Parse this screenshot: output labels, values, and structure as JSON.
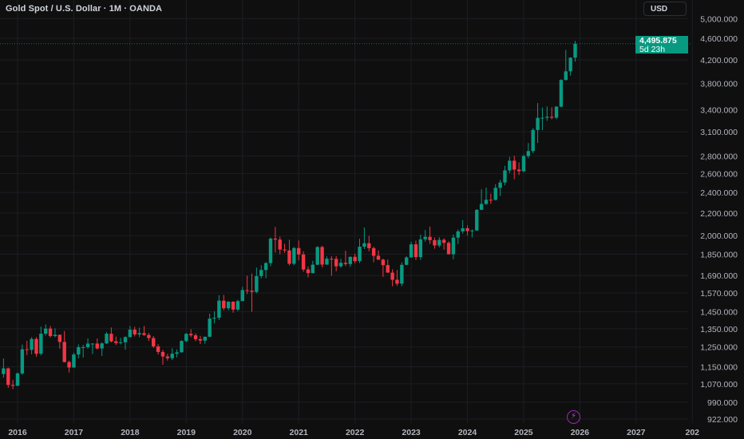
{
  "header": {
    "title": "Gold Spot / U.S. Dollar · 1M · OANDA",
    "currency_button": "USD"
  },
  "last_price": {
    "value": "4,495.875",
    "countdown": "5d 23h"
  },
  "icons": {
    "flash": "lightning-icon"
  },
  "colors": {
    "background": "#0f0f0f",
    "up": "#089981",
    "down": "#f23645",
    "grid": "#1c1e24",
    "text": "#b2b5be",
    "event": "#9c27b0"
  },
  "chart_data": {
    "type": "candlestick",
    "y_scale": "log",
    "ylim": [
      900,
      5100
    ],
    "y_ticks": [
      5000,
      4600,
      4200,
      3800,
      3400,
      3100,
      2800,
      2600,
      2400,
      2200,
      2000,
      1850,
      1690,
      1570,
      1450,
      1350,
      1250,
      1150,
      1070,
      990,
      922
    ],
    "y_tick_labels": [
      "5,000.000",
      "4,600.000",
      "4,200.000",
      "3,800.000",
      "3,400.000",
      "3,100.000",
      "2,800.000",
      "2,600.000",
      "2,400.000",
      "2,200.000",
      "2,000.000",
      "1,850.000",
      "1,690.000",
      "1,570.000",
      "1,450.000",
      "1,350.000",
      "1,250.000",
      "1,150.000",
      "1,070.000",
      "990.000",
      "922.000"
    ],
    "x_ticks": [
      "2016",
      "2017",
      "2018",
      "2019",
      "2020",
      "2021",
      "2022",
      "2023",
      "2024",
      "2025",
      "2026",
      "2027",
      "202"
    ],
    "grid": true,
    "start_month": "2015-10",
    "ohlc": [
      [
        1115,
        1191,
        1098,
        1142
      ],
      [
        1142,
        1146,
        1052,
        1065
      ],
      [
        1065,
        1088,
        1046,
        1061
      ],
      [
        1061,
        1123,
        1061,
        1118
      ],
      [
        1118,
        1263,
        1111,
        1238
      ],
      [
        1238,
        1283,
        1208,
        1235
      ],
      [
        1235,
        1303,
        1212,
        1293
      ],
      [
        1293,
        1303,
        1200,
        1215
      ],
      [
        1215,
        1362,
        1207,
        1322
      ],
      [
        1322,
        1375,
        1311,
        1351
      ],
      [
        1351,
        1366,
        1301,
        1309
      ],
      [
        1309,
        1352,
        1302,
        1316
      ],
      [
        1316,
        1318,
        1241,
        1277
      ],
      [
        1277,
        1337,
        1171,
        1173
      ],
      [
        1173,
        1180,
        1122,
        1146
      ],
      [
        1146,
        1220,
        1145,
        1211
      ],
      [
        1211,
        1264,
        1191,
        1249
      ],
      [
        1249,
        1261,
        1195,
        1249
      ],
      [
        1249,
        1296,
        1241,
        1268
      ],
      [
        1268,
        1270,
        1214,
        1268
      ],
      [
        1268,
        1296,
        1237,
        1242
      ],
      [
        1242,
        1274,
        1204,
        1269
      ],
      [
        1269,
        1331,
        1266,
        1322
      ],
      [
        1322,
        1357,
        1274,
        1280
      ],
      [
        1280,
        1306,
        1261,
        1271
      ],
      [
        1271,
        1299,
        1264,
        1275
      ],
      [
        1275,
        1307,
        1236,
        1303
      ],
      [
        1303,
        1366,
        1302,
        1345
      ],
      [
        1345,
        1361,
        1307,
        1318
      ],
      [
        1318,
        1356,
        1303,
        1325
      ],
      [
        1325,
        1366,
        1310,
        1315
      ],
      [
        1315,
        1326,
        1282,
        1298
      ],
      [
        1298,
        1309,
        1245,
        1253
      ],
      [
        1253,
        1265,
        1211,
        1224
      ],
      [
        1224,
        1235,
        1160,
        1201
      ],
      [
        1201,
        1214,
        1180,
        1192
      ],
      [
        1192,
        1243,
        1183,
        1215
      ],
      [
        1215,
        1237,
        1196,
        1222
      ],
      [
        1222,
        1285,
        1221,
        1282
      ],
      [
        1282,
        1326,
        1275,
        1321
      ],
      [
        1321,
        1347,
        1303,
        1313
      ],
      [
        1313,
        1324,
        1281,
        1292
      ],
      [
        1292,
        1310,
        1266,
        1284
      ],
      [
        1284,
        1306,
        1267,
        1305
      ],
      [
        1305,
        1439,
        1303,
        1409
      ],
      [
        1409,
        1453,
        1381,
        1414
      ],
      [
        1414,
        1555,
        1400,
        1520
      ],
      [
        1520,
        1557,
        1459,
        1472
      ],
      [
        1472,
        1517,
        1459,
        1513
      ],
      [
        1513,
        1516,
        1445,
        1464
      ],
      [
        1464,
        1525,
        1454,
        1517
      ],
      [
        1517,
        1611,
        1517,
        1589
      ],
      [
        1589,
        1689,
        1563,
        1585
      ],
      [
        1585,
        1704,
        1451,
        1577
      ],
      [
        1577,
        1748,
        1568,
        1686
      ],
      [
        1686,
        1765,
        1670,
        1730
      ],
      [
        1730,
        1789,
        1671,
        1781
      ],
      [
        1781,
        1984,
        1757,
        1975
      ],
      [
        1975,
        2075,
        1863,
        1967
      ],
      [
        1967,
        1992,
        1849,
        1886
      ],
      [
        1886,
        1933,
        1860,
        1879
      ],
      [
        1879,
        1966,
        1764,
        1776
      ],
      [
        1776,
        1906,
        1765,
        1898
      ],
      [
        1898,
        1959,
        1802,
        1847
      ],
      [
        1847,
        1872,
        1717,
        1734
      ],
      [
        1734,
        1756,
        1677,
        1707
      ],
      [
        1707,
        1798,
        1706,
        1769
      ],
      [
        1769,
        1913,
        1766,
        1906
      ],
      [
        1906,
        1916,
        1750,
        1770
      ],
      [
        1770,
        1832,
        1768,
        1814
      ],
      [
        1814,
        1834,
        1688,
        1813
      ],
      [
        1813,
        1834,
        1721,
        1757
      ],
      [
        1757,
        1814,
        1746,
        1783
      ],
      [
        1783,
        1877,
        1759,
        1774
      ],
      [
        1774,
        1831,
        1753,
        1829
      ],
      [
        1829,
        1853,
        1780,
        1796
      ],
      [
        1796,
        1974,
        1781,
        1909
      ],
      [
        1909,
        2070,
        1890,
        1937
      ],
      [
        1937,
        1998,
        1872,
        1897
      ],
      [
        1897,
        1909,
        1787,
        1837
      ],
      [
        1837,
        1879,
        1805,
        1807
      ],
      [
        1807,
        1814,
        1681,
        1766
      ],
      [
        1766,
        1808,
        1709,
        1711
      ],
      [
        1711,
        1735,
        1615,
        1660
      ],
      [
        1660,
        1730,
        1617,
        1633
      ],
      [
        1633,
        1786,
        1616,
        1768
      ],
      [
        1768,
        1833,
        1765,
        1824
      ],
      [
        1824,
        1949,
        1823,
        1928
      ],
      [
        1928,
        1959,
        1805,
        1827
      ],
      [
        1827,
        2009,
        1805,
        1969
      ],
      [
        1969,
        2048,
        1950,
        1990
      ],
      [
        1990,
        2079,
        1932,
        1962
      ],
      [
        1962,
        1984,
        1893,
        1919
      ],
      [
        1919,
        1987,
        1903,
        1965
      ],
      [
        1965,
        1978,
        1885,
        1940
      ],
      [
        1940,
        1953,
        1847,
        1849
      ],
      [
        1849,
        2009,
        1810,
        1983
      ],
      [
        1983,
        2052,
        1931,
        2036
      ],
      [
        2036,
        2135,
        2017,
        2063
      ],
      [
        2063,
        2088,
        2002,
        2039
      ],
      [
        2039,
        2052,
        1984,
        2044
      ],
      [
        2044,
        2236,
        2039,
        2230
      ],
      [
        2230,
        2432,
        2228,
        2286
      ],
      [
        2286,
        2450,
        2278,
        2327
      ],
      [
        2327,
        2388,
        2287,
        2326
      ],
      [
        2326,
        2484,
        2319,
        2447
      ],
      [
        2447,
        2531,
        2364,
        2503
      ],
      [
        2503,
        2685,
        2472,
        2634
      ],
      [
        2634,
        2790,
        2604,
        2744
      ],
      [
        2744,
        2801,
        2537,
        2643
      ],
      [
        2643,
        2726,
        2583,
        2625
      ],
      [
        2625,
        2817,
        2614,
        2798
      ],
      [
        2798,
        2956,
        2772,
        2858
      ],
      [
        2858,
        3149,
        2833,
        3124
      ],
      [
        3124,
        3500,
        2957,
        3288
      ],
      [
        3288,
        3435,
        3121,
        3289
      ],
      [
        3289,
        3452,
        3247,
        3303
      ],
      [
        3303,
        3439,
        3268,
        3290
      ],
      [
        3290,
        3453,
        3269,
        3448
      ],
      [
        3448,
        3871,
        3436,
        3858
      ],
      [
        3858,
        4381,
        3850,
        4002
      ],
      [
        4002,
        4245,
        3930,
        4239
      ],
      [
        4239,
        4550,
        4170,
        4495.875
      ]
    ]
  }
}
